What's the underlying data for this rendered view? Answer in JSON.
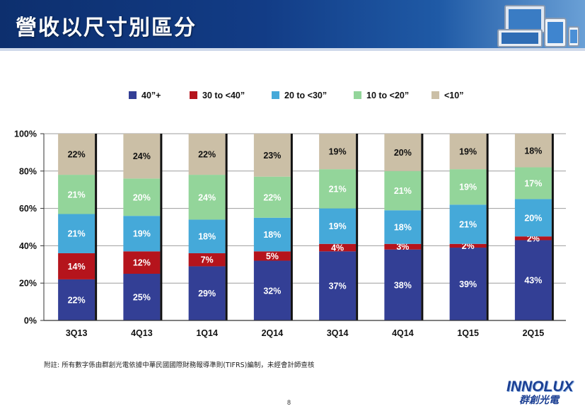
{
  "title": "營收以尺寸別區分",
  "chart_data": {
    "type": "bar",
    "stacked": true,
    "categories": [
      "3Q13",
      "4Q13",
      "1Q14",
      "2Q14",
      "3Q14",
      "4Q14",
      "1Q15",
      "2Q15"
    ],
    "series": [
      {
        "name": "40”+",
        "color": "#333f95",
        "values": [
          22,
          25,
          29,
          32,
          37,
          38,
          39,
          43
        ]
      },
      {
        "name": "30 to <40”",
        "color": "#b5141c",
        "values": [
          14,
          12,
          7,
          5,
          4,
          3,
          2,
          2
        ]
      },
      {
        "name": "20 to <30”",
        "color": "#45a9d9",
        "values": [
          21,
          19,
          18,
          18,
          19,
          18,
          21,
          20
        ]
      },
      {
        "name": "10 to <20”",
        "color": "#93d59a",
        "values": [
          21,
          20,
          24,
          22,
          21,
          21,
          19,
          17
        ]
      },
      {
        "name": "<10”",
        "color": "#cbbfa6",
        "values": [
          22,
          24,
          22,
          23,
          19,
          20,
          19,
          18
        ]
      }
    ],
    "labels": [
      [
        "22%",
        "25%",
        "29%",
        "32%",
        "37%",
        "38%",
        "39%",
        "43%"
      ],
      [
        "14%",
        "12%",
        "7%",
        "5%",
        "4%",
        "3%",
        "2%",
        "2%"
      ],
      [
        "21%",
        "19%",
        "18%",
        "18%",
        "19%",
        "18%",
        "21%",
        "20%"
      ],
      [
        "21%",
        "20%",
        "24%",
        "22%",
        "21%",
        "21%",
        "19%",
        "17%"
      ],
      [
        "22%",
        "24%",
        "22%",
        "23%",
        "19%",
        "20%",
        "19%",
        "18%"
      ]
    ],
    "y_ticks": [
      "0%",
      "20%",
      "40%",
      "60%",
      "80%",
      "100%"
    ],
    "ylim": [
      0,
      100
    ],
    "legend_position": "top"
  },
  "footnote": "附註: 所有數字係由群創光電依據中華民國國際財務報導準則(TIFRS)編制，未經會計師查核",
  "page_number": "8",
  "logo": {
    "brand": "INNOLUX",
    "chinese": "群創光電"
  }
}
